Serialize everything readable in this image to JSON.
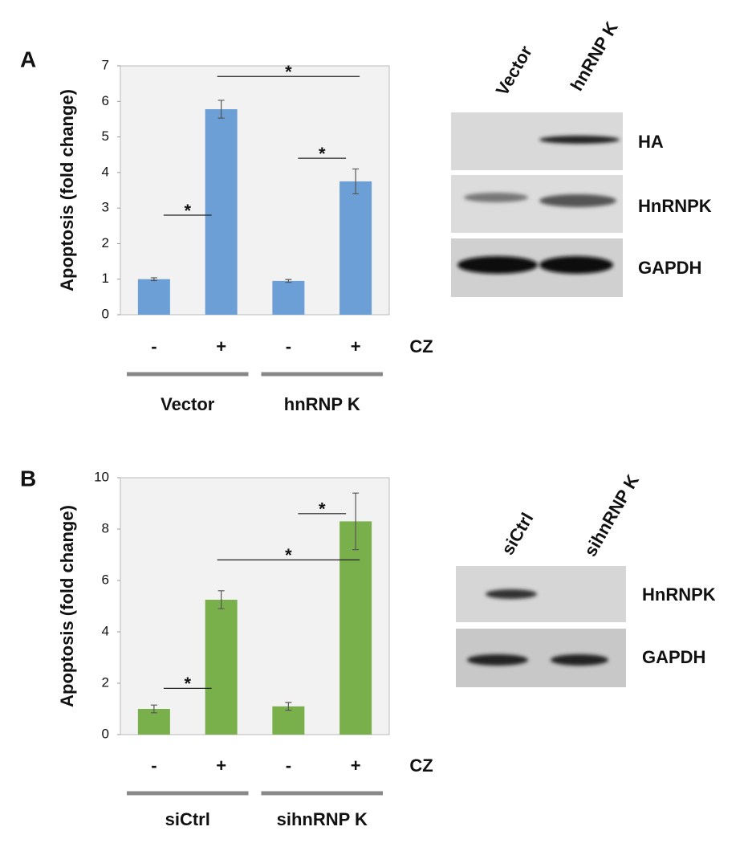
{
  "chart_data": [
    {
      "type": "bar",
      "panel_label": "A",
      "y_label": "Apoptosis (fold change)",
      "categories": [
        "-",
        "+",
        "-",
        "+"
      ],
      "values": [
        1.0,
        5.78,
        0.95,
        3.75
      ],
      "errors": [
        0.04,
        0.25,
        0.04,
        0.35
      ],
      "color": "#6b9fd6",
      "ylim": [
        0,
        7
      ],
      "yticks": [
        0,
        1,
        2,
        3,
        4,
        5,
        6,
        7
      ],
      "treatment": "CZ",
      "groups": [
        "Vector",
        "hnRNP K"
      ],
      "significance": [
        {
          "from": 0,
          "to": 1,
          "y": 2.8,
          "label": "*"
        },
        {
          "from": 2,
          "to": 3,
          "y": 4.4,
          "label": "*"
        },
        {
          "from": 1,
          "to": 3,
          "y": 6.7,
          "label": "*"
        }
      ]
    },
    {
      "type": "bar",
      "panel_label": "B",
      "y_label": "Apoptosis (fold change)",
      "categories": [
        "-",
        "+",
        "-",
        "+"
      ],
      "values": [
        1.0,
        5.25,
        1.1,
        8.3
      ],
      "errors": [
        0.15,
        0.35,
        0.15,
        1.1
      ],
      "color": "#79b04c",
      "ylim": [
        0,
        10
      ],
      "yticks": [
        0,
        2,
        4,
        6,
        8,
        10
      ],
      "treatment": "CZ",
      "groups": [
        "siCtrl",
        "sihnRNP K"
      ],
      "significance": [
        {
          "from": 0,
          "to": 1,
          "y": 1.8,
          "label": "*"
        },
        {
          "from": 2,
          "to": 3,
          "y": 8.6,
          "label": "*"
        },
        {
          "from": 1,
          "to": 3,
          "y": 6.8,
          "label": "*"
        }
      ]
    }
  ],
  "blots": [
    {
      "lanes": [
        "Vector",
        "hnRNP K"
      ],
      "rows": [
        "HA",
        "HnRNPK",
        "GAPDH"
      ]
    },
    {
      "lanes": [
        "siCtrl",
        "sihnRNP K"
      ],
      "rows": [
        "HnRNPK",
        "GAPDH"
      ]
    }
  ]
}
